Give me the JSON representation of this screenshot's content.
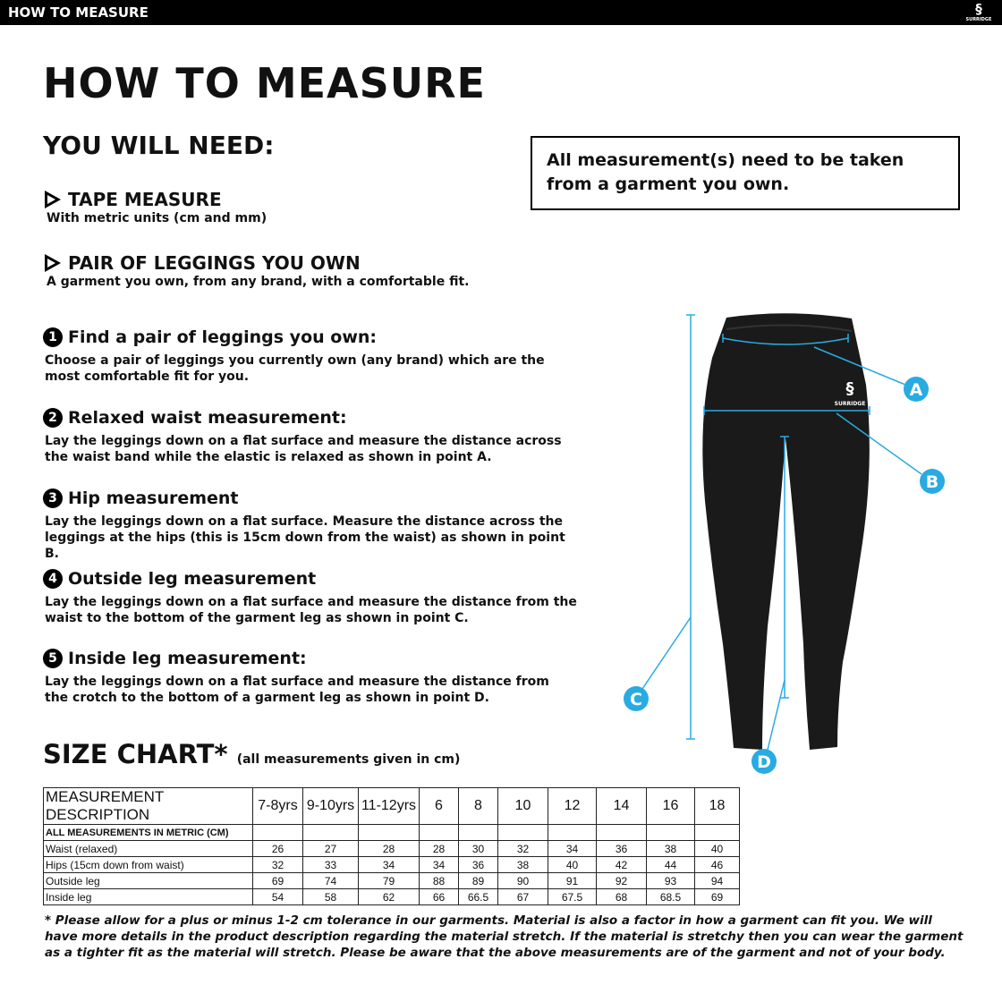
{
  "header": {
    "title": "HOW TO MEASURE",
    "logo_text": "SURRIDGE"
  },
  "page_title": "HOW TO MEASURE",
  "you_will_need": {
    "heading": "YOU WILL NEED:",
    "items": [
      {
        "title": "TAPE MEASURE",
        "desc": "With metric units (cm and mm)"
      },
      {
        "title": "PAIR OF LEGGINGS YOU OWN",
        "desc": "A garment you own, from any brand, with a comfortable fit."
      }
    ]
  },
  "notice": "All measurement(s) need to be taken from a garment you own.",
  "steps": [
    {
      "num": "1",
      "title": "Find a pair of leggings you own:",
      "desc": "Choose a pair of leggings you currently own (any brand) which are the most comfortable fit for you."
    },
    {
      "num": "2",
      "title": "Relaxed waist measurement:",
      "desc": "Lay the leggings down on a flat surface and measure the distance across the waist band while the elastic is relaxed as shown in point A."
    },
    {
      "num": "3",
      "title": "Hip measurement",
      "desc": "Lay the leggings down on a flat surface. Measure the distance across the leggings at the hips (this is 15cm down from the waist) as shown in point B."
    },
    {
      "num": "4",
      "title": "Outside leg measurement",
      "desc": "Lay the leggings down on a flat surface and measure the distance from the waist to the bottom of the garment leg as shown in point C."
    },
    {
      "num": "5",
      "title": "Inside leg measurement:",
      "desc": "Lay the leggings down on a flat surface and measure the distance from the crotch to the bottom of a garment leg as shown in point D."
    }
  ],
  "diagram": {
    "points": [
      "A",
      "B",
      "C",
      "D"
    ],
    "garment_logo": "SURRIDGE",
    "accent": "#29abe2"
  },
  "size_chart": {
    "title": "SIZE CHART*",
    "subtitle": "(all measurements given in cm)",
    "header": [
      "MEASUREMENT DESCRIPTION",
      "7-8yrs",
      "9-10yrs",
      "11-12yrs",
      "6",
      "8",
      "10",
      "12",
      "14",
      "16",
      "18"
    ],
    "subheader": "ALL MEASUREMENTS IN METRIC (CM)",
    "rows": [
      {
        "label": "Waist (relaxed)",
        "values": [
          "26",
          "27",
          "28",
          "28",
          "30",
          "32",
          "34",
          "36",
          "38",
          "40"
        ]
      },
      {
        "label": "Hips (15cm down from waist)",
        "values": [
          "32",
          "33",
          "34",
          "34",
          "36",
          "38",
          "40",
          "42",
          "44",
          "46"
        ]
      },
      {
        "label": "Outside leg",
        "values": [
          "69",
          "74",
          "79",
          "88",
          "89",
          "90",
          "91",
          "92",
          "93",
          "94"
        ]
      },
      {
        "label": "Inside leg",
        "values": [
          "54",
          "58",
          "62",
          "66",
          "66.5",
          "67",
          "67.5",
          "68",
          "68.5",
          "69"
        ]
      }
    ]
  },
  "footnote": "* Please allow for a plus or minus 1-2 cm tolerance in our garments. Material is also a factor in how a garment can fit you. We will have more details in the product description regarding the material stretch.  If the material is stretchy then you can wear the garment as a tighter fit as the material will stretch.  Please be aware that the above measurements are of the garment and not of your body."
}
